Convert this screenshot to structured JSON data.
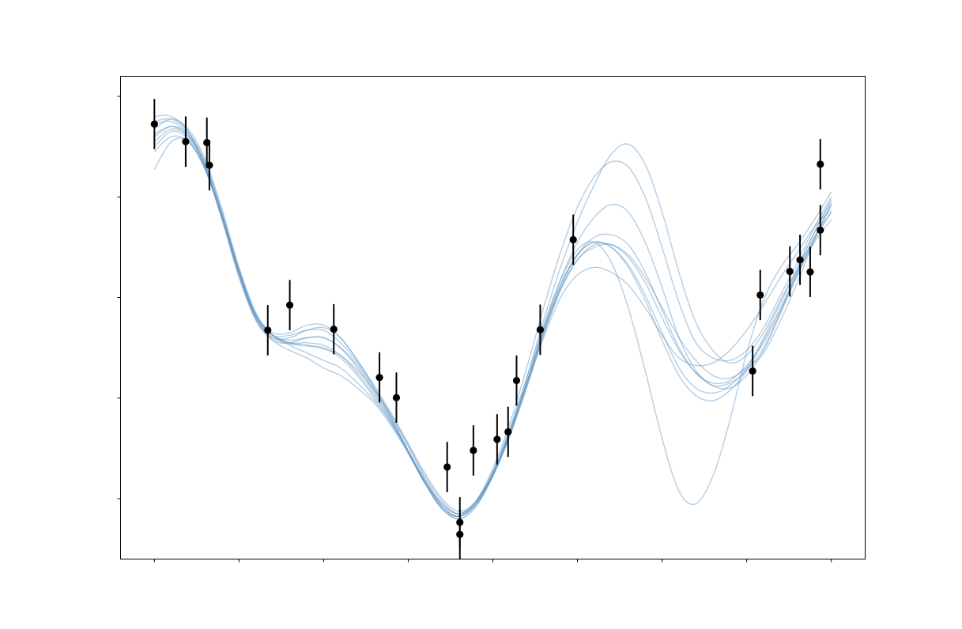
{
  "chart_data": {
    "type": "scatter",
    "title": "",
    "xlabel": "",
    "ylabel": "",
    "grid": false,
    "legend": "none",
    "xlim": [
      -0.4,
      8.4
    ],
    "ylim": [
      -4.2,
      5.4
    ],
    "x_ticks": [
      0,
      1,
      2,
      3,
      4,
      5,
      6,
      7,
      8
    ],
    "y_ticks": [
      -3,
      -1,
      1,
      3,
      5
    ],
    "colors": {
      "samples": "#5b93c0",
      "observations": "#000000"
    },
    "observations": {
      "error": 0.5,
      "points": [
        {
          "x": 0.0,
          "y": 4.45
        },
        {
          "x": 0.37,
          "y": 4.1
        },
        {
          "x": 0.62,
          "y": 4.08
        },
        {
          "x": 0.65,
          "y": 3.63
        },
        {
          "x": 1.34,
          "y": 0.35
        },
        {
          "x": 1.6,
          "y": 0.85
        },
        {
          "x": 2.12,
          "y": 0.37
        },
        {
          "x": 2.66,
          "y": -0.59
        },
        {
          "x": 2.86,
          "y": -0.99
        },
        {
          "x": 3.46,
          "y": -2.37
        },
        {
          "x": 3.61,
          "y": -3.47
        },
        {
          "x": 3.61,
          "y": -3.71
        },
        {
          "x": 3.77,
          "y": -2.04
        },
        {
          "x": 4.05,
          "y": -1.82
        },
        {
          "x": 4.18,
          "y": -1.67
        },
        {
          "x": 4.28,
          "y": -0.65
        },
        {
          "x": 4.56,
          "y": 0.36
        },
        {
          "x": 4.95,
          "y": 2.15
        },
        {
          "x": 7.07,
          "y": -0.46
        },
        {
          "x": 7.16,
          "y": 1.05
        },
        {
          "x": 7.51,
          "y": 1.52
        },
        {
          "x": 7.63,
          "y": 1.75
        },
        {
          "x": 7.75,
          "y": 1.51
        },
        {
          "x": 7.87,
          "y": 3.65
        },
        {
          "x": 7.87,
          "y": 2.34
        }
      ]
    },
    "samples": {
      "x": [
        0.0,
        0.2,
        0.4,
        0.6,
        0.8,
        1.0,
        1.2,
        1.4,
        1.6,
        1.8,
        2.0,
        2.2,
        2.4,
        2.6,
        2.8,
        3.0,
        3.2,
        3.4,
        3.6,
        3.8,
        4.0,
        4.2,
        4.4,
        4.6,
        4.8,
        5.0,
        5.2,
        5.4,
        5.6,
        5.8,
        6.0,
        6.2,
        6.4,
        6.6,
        6.8,
        7.0,
        7.2,
        7.4,
        7.6,
        7.8,
        8.0
      ],
      "series": [
        [
          3.55,
          4.1,
          4.1,
          3.55,
          2.55,
          1.45,
          0.6,
          0.2,
          0.08,
          0.04,
          -0.02,
          -0.15,
          -0.45,
          -0.85,
          -1.35,
          -1.95,
          -2.55,
          -3.05,
          -3.3,
          -3.1,
          -2.55,
          -1.75,
          -0.8,
          0.25,
          1.15,
          1.75,
          2.0,
          2.05,
          1.85,
          1.4,
          0.8,
          0.2,
          -0.25,
          -0.55,
          -0.6,
          -0.4,
          -0.1,
          0.55,
          1.3,
          2.15,
          2.85
        ],
        [
          4.0,
          4.3,
          4.15,
          3.55,
          2.6,
          1.5,
          0.65,
          0.25,
          0.05,
          -0.1,
          -0.25,
          -0.4,
          -0.7,
          -1.05,
          -1.5,
          -2.05,
          -2.65,
          -3.1,
          -3.3,
          -3.05,
          -2.5,
          -1.7,
          -0.7,
          0.4,
          1.35,
          2.1,
          2.6,
          2.85,
          2.7,
          2.1,
          1.2,
          0.2,
          -0.45,
          -0.75,
          -0.8,
          -0.55,
          -0.05,
          0.7,
          1.55,
          2.3,
          2.95
        ],
        [
          4.35,
          4.55,
          4.35,
          3.75,
          2.75,
          1.6,
          0.7,
          0.25,
          0.15,
          0.2,
          0.2,
          0.0,
          -0.35,
          -0.85,
          -1.4,
          -2.05,
          -2.7,
          -3.2,
          -3.35,
          -3.05,
          -2.4,
          -1.5,
          -0.4,
          0.8,
          1.9,
          2.8,
          3.4,
          3.7,
          3.6,
          3.0,
          2.0,
          0.9,
          0.1,
          -0.2,
          -0.25,
          -0.05,
          0.4,
          1.05,
          1.7,
          2.4,
          3.0
        ],
        [
          4.1,
          4.35,
          4.2,
          3.6,
          2.6,
          1.45,
          0.6,
          0.25,
          0.25,
          0.35,
          0.35,
          0.1,
          -0.3,
          -0.8,
          -1.35,
          -1.95,
          -2.6,
          -3.1,
          -3.3,
          -3.05,
          -2.45,
          -1.6,
          -0.6,
          0.45,
          1.35,
          1.95,
          2.1,
          1.7,
          0.8,
          -0.45,
          -1.8,
          -2.85,
          -3.1,
          -2.55,
          -1.45,
          -0.1,
          0.95,
          1.6,
          2.05,
          2.55,
          3.1
        ],
        [
          4.2,
          4.4,
          4.25,
          3.65,
          2.65,
          1.55,
          0.65,
          0.25,
          0.1,
          0.1,
          0.05,
          -0.15,
          -0.5,
          -0.95,
          -1.45,
          -2.05,
          -2.65,
          -3.15,
          -3.35,
          -3.1,
          -2.5,
          -1.7,
          -0.7,
          0.3,
          1.15,
          1.75,
          2.05,
          2.05,
          1.8,
          1.3,
          0.6,
          -0.05,
          -0.5,
          -0.75,
          -0.7,
          -0.45,
          0.0,
          0.7,
          1.45,
          2.2,
          2.7
        ],
        [
          4.5,
          4.55,
          4.3,
          3.7,
          2.7,
          1.55,
          0.65,
          0.3,
          0.3,
          0.45,
          0.45,
          0.2,
          -0.25,
          -0.75,
          -1.3,
          -1.9,
          -2.5,
          -3.0,
          -3.25,
          -3.05,
          -2.5,
          -1.7,
          -0.75,
          0.2,
          1.0,
          1.45,
          1.6,
          1.5,
          1.25,
          0.8,
          0.25,
          -0.2,
          -0.35,
          -0.3,
          -0.05,
          0.35,
          0.85,
          1.4,
          1.9,
          2.4,
          2.75
        ],
        [
          4.6,
          4.6,
          4.3,
          3.6,
          2.55,
          1.4,
          0.55,
          0.2,
          0.2,
          0.35,
          0.4,
          0.2,
          -0.25,
          -0.8,
          -1.4,
          -2.05,
          -2.7,
          -3.2,
          -3.4,
          -3.15,
          -2.55,
          -1.7,
          -0.7,
          0.35,
          1.25,
          1.85,
          2.1,
          2.0,
          1.65,
          1.05,
          0.3,
          -0.4,
          -0.8,
          -0.9,
          -0.75,
          -0.4,
          0.2,
          0.9,
          1.55,
          2.2,
          2.85
        ],
        [
          3.9,
          4.2,
          4.1,
          3.55,
          2.6,
          1.5,
          0.6,
          0.15,
          -0.05,
          -0.2,
          -0.4,
          -0.55,
          -0.8,
          -1.1,
          -1.55,
          -2.1,
          -2.7,
          -3.15,
          -3.35,
          -3.1,
          -2.5,
          -1.65,
          -0.6,
          0.55,
          1.6,
          2.5,
          3.25,
          3.85,
          4.05,
          3.65,
          2.7,
          1.5,
          0.5,
          -0.05,
          -0.3,
          -0.15,
          0.3,
          0.95,
          1.6,
          2.3,
          2.9
        ],
        [
          4.25,
          4.4,
          4.2,
          3.65,
          2.65,
          1.55,
          0.65,
          0.25,
          0.1,
          0.05,
          0.0,
          -0.2,
          -0.55,
          -1.0,
          -1.5,
          -2.1,
          -2.7,
          -3.2,
          -3.4,
          -3.15,
          -2.55,
          -1.75,
          -0.75,
          0.3,
          1.2,
          1.85,
          2.2,
          2.25,
          2.05,
          1.5,
          0.75,
          0.0,
          -0.5,
          -0.7,
          -0.65,
          -0.35,
          0.1,
          0.75,
          1.45,
          2.1,
          2.55
        ],
        [
          4.45,
          4.5,
          4.25,
          3.6,
          2.6,
          1.45,
          0.55,
          0.15,
          0.1,
          0.2,
          0.2,
          0.0,
          -0.4,
          -0.9,
          -1.45,
          -2.05,
          -2.65,
          -3.15,
          -3.35,
          -3.1,
          -2.5,
          -1.65,
          -0.7,
          0.35,
          1.25,
          1.85,
          2.1,
          2.0,
          1.6,
          0.95,
          0.15,
          -0.55,
          -0.95,
          -1.05,
          -0.85,
          -0.45,
          0.15,
          0.8,
          1.5,
          2.15,
          2.7
        ]
      ]
    }
  }
}
